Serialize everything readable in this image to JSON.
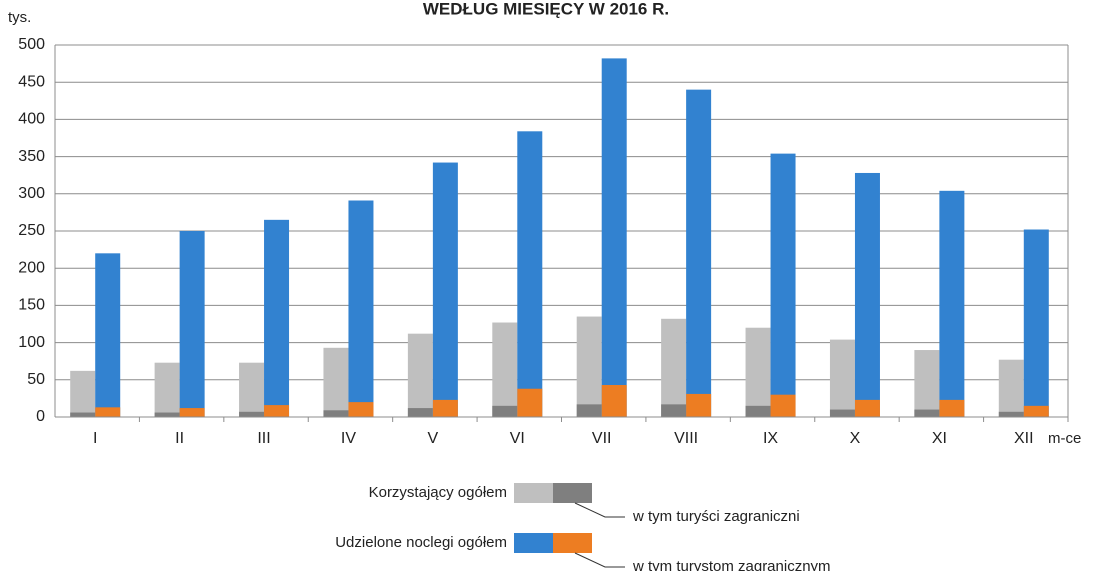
{
  "chart_data": {
    "type": "bar",
    "title": "WEDŁUG MIESIĘCY W 2016 R.",
    "y_label": "tys.",
    "x_label": "m-ce",
    "categories": [
      "I",
      "II",
      "III",
      "IV",
      "V",
      "VI",
      "VII",
      "VIII",
      "IX",
      "X",
      "XI",
      "XII"
    ],
    "series": [
      {
        "name": "Korzystający ogółem",
        "color": "#bfbfbf",
        "values": [
          62,
          73,
          73,
          93,
          112,
          127,
          135,
          132,
          120,
          104,
          90,
          77
        ]
      },
      {
        "name": "w tym turyści zagraniczni",
        "color": "#7f7f7f",
        "values": [
          6,
          6,
          7,
          9,
          12,
          15,
          17,
          17,
          15,
          10,
          10,
          7
        ]
      },
      {
        "name": "Udzielone noclegi ogółem",
        "color": "#3282d0",
        "values": [
          220,
          250,
          265,
          291,
          342,
          384,
          482,
          440,
          354,
          328,
          304,
          252
        ]
      },
      {
        "name": "w tym turystom zagranicznym",
        "color": "#ed7d22",
        "values": [
          13,
          12,
          16,
          20,
          23,
          38,
          43,
          31,
          30,
          23,
          23,
          15
        ]
      }
    ],
    "ylim": [
      0,
      500
    ],
    "yticks": [
      0,
      50,
      100,
      150,
      200,
      250,
      300,
      350,
      400,
      450,
      500
    ],
    "grid": true
  }
}
